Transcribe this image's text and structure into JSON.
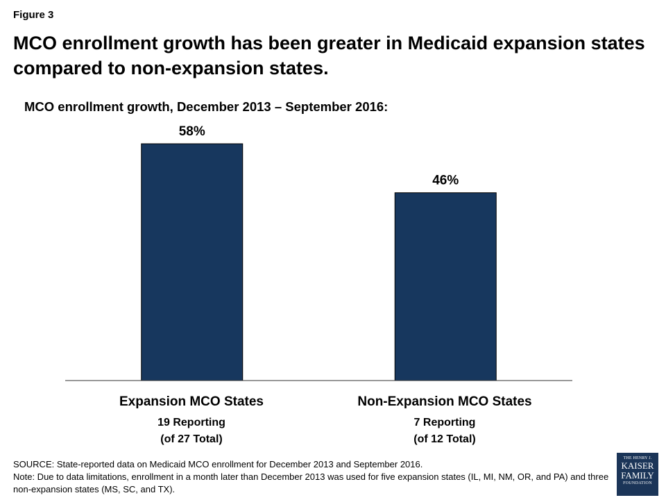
{
  "figure_label": "Figure 3",
  "title": "MCO enrollment growth has been greater in Medicaid expansion states compared to non-expansion states.",
  "subtitle": "MCO enrollment growth, December 2013 – September 2016:",
  "colors": {
    "bar": "#17375e",
    "axis": "#333333"
  },
  "chart_data": {
    "type": "bar",
    "categories": [
      "Expansion MCO States",
      "Non-Expansion MCO States"
    ],
    "values": [
      58,
      46
    ],
    "data_labels": [
      "58%",
      "46%"
    ],
    "category_details": [
      [
        "19 Reporting",
        "(of 27 Total)"
      ],
      [
        "7 Reporting",
        "(of 12 Total)"
      ]
    ],
    "title": "MCO enrollment growth, December 2013 – September 2016:",
    "xlabel": "",
    "ylabel": "",
    "ylim": [
      0,
      58
    ],
    "grid": false,
    "legend": false
  },
  "footer": {
    "source": "SOURCE: State-reported data on Medicaid MCO enrollment for December 2013 and September 2016.",
    "note": "Note: Due to data limitations, enrollment in a month later than December 2013 was used for five expansion states (IL, MI, NM, OR, and PA) and three non-expansion states (MS, SC, and TX)."
  },
  "logo": {
    "line1": "THE HENRY J.",
    "line2": "KAISER",
    "line3": "FAMILY",
    "line4": "FOUNDATION"
  }
}
